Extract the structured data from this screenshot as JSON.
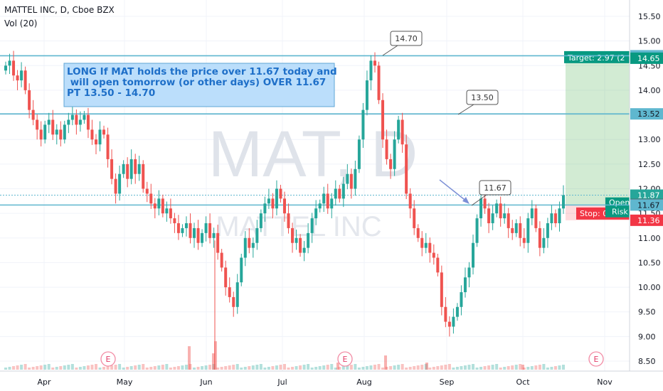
{
  "header": {
    "symbol_line": "MATTEL INC, D, Cboe BZX",
    "volume_line": "Vol (20)"
  },
  "watermark": {
    "big": "MAT, D",
    "small": "MATTEL INC"
  },
  "note": {
    "lines": [
      "LONG If MAT holds the price over 11.67 today and",
      " will open tomorrow (or other days) OVER 11.67",
      "PT 13.50 - 14.70"
    ]
  },
  "callouts": [
    {
      "label": "14.70",
      "price": 14.7
    },
    {
      "label": "13.50",
      "price": 13.5
    },
    {
      "label": "11.67",
      "price": 11.67
    }
  ],
  "position": {
    "target_label": "Target: 2.97 (2",
    "stop_label": "Stop: 0.32 (2",
    "open_label_1": "Open",
    "open_label_2": "Risk",
    "entry": 11.68,
    "target": 14.65,
    "stop": 11.36
  },
  "price_tags": [
    {
      "label": "14.70",
      "price": 14.7,
      "kind": "line"
    },
    {
      "label": "14.65",
      "price": 14.65,
      "kind": "target"
    },
    {
      "label": "13.52",
      "price": 13.52,
      "kind": "line"
    },
    {
      "label": "11.87",
      "price": 11.87,
      "kind": "last"
    },
    {
      "label": "11.68",
      "price": 11.68,
      "kind": "entry"
    },
    {
      "label": "11.67",
      "price": 11.67,
      "kind": "line"
    },
    {
      "label": "11.36",
      "price": 11.36,
      "kind": "stop"
    }
  ],
  "earnings_label": "E",
  "colors": {
    "up": "#26a69a",
    "down": "#ef5350",
    "hline": "#5fb7cf",
    "target": "#089981",
    "stop": "#f23645",
    "note_bg": "#bbdefb",
    "note_text": "#1e6fc8"
  },
  "chart_data": {
    "type": "candlestick",
    "title": "MATTEL INC, D, Cboe BZX",
    "yaxis_ticks": [
      "15.50",
      "15.00",
      "14.50",
      "14.00",
      "13.50",
      "13.00",
      "12.50",
      "12.00",
      "11.50",
      "11.00",
      "10.50",
      "10.00",
      "9.50",
      "9.00",
      "8.50"
    ],
    "ylim": [
      8.4,
      15.7
    ],
    "xaxis_ticks": [
      "Apr",
      "May",
      "Jun",
      "Jul",
      "Aug",
      "Sep",
      "Oct",
      "Nov"
    ],
    "horizontal_lines": [
      14.7,
      13.52,
      11.87,
      11.67
    ],
    "annotation": "LONG If MAT holds the price over 11.67 today and will open tomorrow (or other days) OVER 11.67 PT 13.50 - 14.70",
    "targets": [
      13.5,
      14.7
    ],
    "trigger": 11.67,
    "long_position": {
      "entry": 11.68,
      "target": 14.65,
      "stop": 11.36
    },
    "earnings_dates": [
      "Apr",
      "Jul end",
      "Oct end"
    ],
    "series_closes": [
      14.5,
      14.6,
      14.3,
      14.2,
      14.4,
      14.0,
      13.6,
      13.4,
      13.2,
      13.0,
      13.3,
      13.4,
      13.1,
      13.2,
      13.0,
      13.3,
      13.4,
      13.5,
      13.3,
      13.4,
      13.5,
      13.2,
      13.0,
      12.9,
      13.2,
      13.1,
      12.6,
      12.2,
      11.9,
      12.3,
      12.5,
      12.2,
      12.6,
      12.3,
      12.5,
      12.0,
      11.9,
      11.7,
      11.6,
      11.8,
      11.5,
      11.6,
      11.4,
      11.3,
      11.1,
      11.2,
      11.3,
      11.0,
      11.2,
      10.9,
      11.1,
      11.3,
      11.0,
      11.1,
      10.7,
      10.4,
      10.0,
      9.8,
      9.6,
      10.1,
      10.6,
      11.0,
      10.8,
      10.9,
      11.2,
      11.5,
      11.7,
      11.8,
      11.6,
      12.0,
      11.8,
      11.5,
      11.2,
      10.9,
      11.0,
      10.7,
      10.8,
      11.1,
      11.4,
      11.6,
      11.7,
      11.9,
      11.6,
      11.8,
      12.0,
      11.8,
      12.1,
      12.3,
      12.0,
      12.4,
      13.0,
      13.6,
      14.2,
      14.6,
      14.5,
      13.8,
      13.0,
      12.6,
      12.4,
      13.0,
      13.4,
      12.9,
      11.9,
      11.6,
      11.2,
      11.0,
      10.8,
      10.9,
      10.7,
      10.6,
      10.3,
      9.6,
      9.3,
      9.2,
      9.4,
      9.6,
      9.9,
      10.2,
      10.4,
      10.9,
      11.4,
      11.8,
      11.6,
      11.3,
      11.5,
      11.7,
      11.4,
      11.5,
      11.2,
      11.1,
      11.3,
      11.0,
      10.9,
      11.4,
      11.6,
      11.2,
      10.8,
      11.0,
      11.3,
      11.5,
      11.3,
      11.6,
      11.87
    ]
  }
}
